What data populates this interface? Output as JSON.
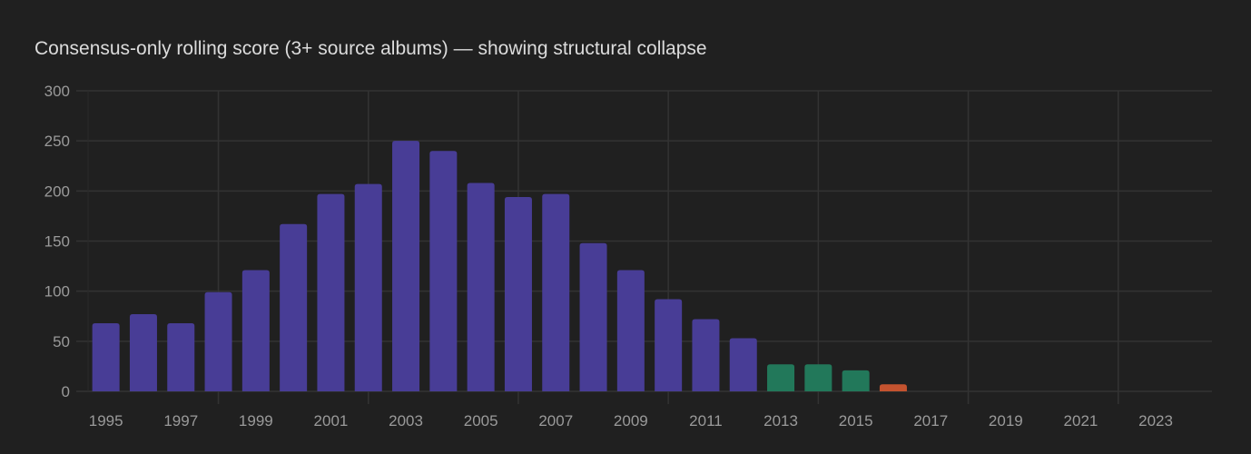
{
  "chart_data": {
    "type": "bar",
    "title": "Consensus-only rolling score (3+ source albums) — showing structural collapse",
    "xlabel": "",
    "ylabel": "",
    "ylim": [
      0,
      300
    ],
    "yticks": [
      0,
      50,
      100,
      150,
      200,
      250,
      300
    ],
    "grid": true,
    "categories": [
      "1995",
      "1996",
      "1997",
      "1998",
      "1999",
      "2000",
      "2001",
      "2002",
      "2003",
      "2004",
      "2005",
      "2006",
      "2007",
      "2008",
      "2009",
      "2010",
      "2011",
      "2012",
      "2013",
      "2014",
      "2015",
      "2016",
      "2017",
      "2018",
      "2019",
      "2020",
      "2021",
      "2022",
      "2023",
      "2024"
    ],
    "xtick_labels": [
      "1995",
      "1997",
      "1999",
      "2001",
      "2003",
      "2005",
      "2007",
      "2009",
      "2011",
      "2013",
      "2015",
      "2017",
      "2019",
      "2021",
      "2023"
    ],
    "values": [
      68,
      77,
      68,
      99,
      121,
      167,
      197,
      207,
      250,
      240,
      208,
      194,
      197,
      148,
      121,
      92,
      72,
      53,
      27,
      27,
      21,
      7,
      0,
      0,
      0,
      0,
      0,
      0,
      0,
      0
    ],
    "bar_status": [
      "normal",
      "normal",
      "normal",
      "normal",
      "normal",
      "normal",
      "normal",
      "normal",
      "normal",
      "normal",
      "normal",
      "normal",
      "normal",
      "normal",
      "normal",
      "normal",
      "normal",
      "normal",
      "low",
      "low",
      "low",
      "collapse",
      "none",
      "none",
      "none",
      "none",
      "none",
      "none",
      "none",
      "none"
    ],
    "colors": {
      "normal": "#483d96",
      "low": "#22785a",
      "collapse": "#c4532f",
      "grid": "#333333",
      "tick": "#9a9a9a"
    }
  }
}
